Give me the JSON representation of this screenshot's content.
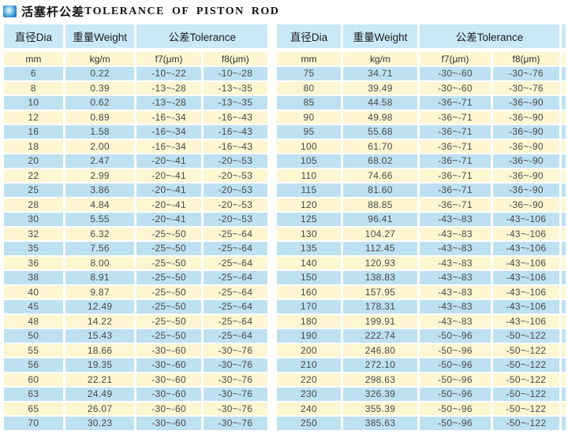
{
  "title": {
    "zh": "活塞杆公差",
    "en": "TOLERANCE OF PISTON ROD"
  },
  "colors": {
    "row_blue": "#bde1f1",
    "row_yellow": "#fdf6d0",
    "header_blue": "#c9e9f6",
    "icon_blue": "#1d7fc4",
    "text_dark": "#1c1c1c",
    "text_data": "#4a4a4a"
  },
  "table": {
    "headers": {
      "dia": "直径Dia",
      "weight": "重量Weight",
      "tolerance": "公差Tolerance"
    },
    "subheaders": {
      "dia_unit": "mm",
      "weight_unit": "kg/m",
      "f7": "f7(μm)",
      "f8": "f8(μm)"
    },
    "left_rows": [
      [
        "6",
        "0.22",
        "-10~-22",
        "-10~-28"
      ],
      [
        "8",
        "0.39",
        "-13~-28",
        "-13~-35"
      ],
      [
        "10",
        "0.62",
        "-13~-28",
        "-13~-35"
      ],
      [
        "12",
        "0.89",
        "-16~-34",
        "-16~-43"
      ],
      [
        "16",
        "1.58",
        "-16~-34",
        "-16~-43"
      ],
      [
        "18",
        "2.00",
        "-16~-34",
        "-16~-43"
      ],
      [
        "20",
        "2.47",
        "-20~-41",
        "-20~-53"
      ],
      [
        "22",
        "2.99",
        "-20~-41",
        "-20~-53"
      ],
      [
        "25",
        "3.86",
        "-20~-41",
        "-20~-53"
      ],
      [
        "28",
        "4.84",
        "-20~-41",
        "-20~-53"
      ],
      [
        "30",
        "5.55",
        "-20~-41",
        "-20~-53"
      ],
      [
        "32",
        "6.32",
        "-25~-50",
        "-25~-64"
      ],
      [
        "35",
        "7.56",
        "-25~-50",
        "-25~-64"
      ],
      [
        "36",
        "8.00",
        "-25~-50",
        "-25~-64"
      ],
      [
        "38",
        "8.91",
        "-25~-50",
        "-25~-64"
      ],
      [
        "40",
        "9.87",
        "-25~-50",
        "-25~-64"
      ],
      [
        "45",
        "12.49",
        "-25~-50",
        "-25~-64"
      ],
      [
        "48",
        "14.22",
        "-25~-50",
        "-25~-64"
      ],
      [
        "50",
        "15.43",
        "-25~-50",
        "-25~-64"
      ],
      [
        "55",
        "18.66",
        "-30~-60",
        "-30~-76"
      ],
      [
        "56",
        "19.35",
        "-30~-60",
        "-30~-76"
      ],
      [
        "60",
        "22.21",
        "-30~-60",
        "-30~-76"
      ],
      [
        "63",
        "24.49",
        "-30~-60",
        "-30~-76"
      ],
      [
        "65",
        "26.07",
        "-30~-60",
        "-30~-76"
      ],
      [
        "70",
        "30.23",
        "-30~-60",
        "-30~-76"
      ]
    ],
    "right_rows": [
      [
        "75",
        "34.71",
        "-30~-60",
        "-30~-76"
      ],
      [
        "80",
        "39.49",
        "-30~-60",
        "-30~-76"
      ],
      [
        "85",
        "44.58",
        "-36~-71",
        "-36~-90"
      ],
      [
        "90",
        "49.98",
        "-36~-71",
        "-36~-90"
      ],
      [
        "95",
        "55.68",
        "-36~-71",
        "-36~-90"
      ],
      [
        "100",
        "61.70",
        "-36~-71",
        "-36~-90"
      ],
      [
        "105",
        "68.02",
        "-36~-71",
        "-36~-90"
      ],
      [
        "110",
        "74.66",
        "-36~-71",
        "-36~-90"
      ],
      [
        "115",
        "81.60",
        "-36~-71",
        "-36~-90"
      ],
      [
        "120",
        "88.85",
        "-36~-71",
        "-36~-90"
      ],
      [
        "125",
        "96.41",
        "-43~-83",
        "-43~-106"
      ],
      [
        "130",
        "104.27",
        "-43~-83",
        "-43~-106"
      ],
      [
        "135",
        "112.45",
        "-43~-83",
        "-43~-106"
      ],
      [
        "140",
        "120.93",
        "-43~-83",
        "-43~-106"
      ],
      [
        "150",
        "138.83",
        "-43~-83",
        "-43~-106"
      ],
      [
        "160",
        "157.95",
        "-43~-83",
        "-43~-106"
      ],
      [
        "170",
        "178.31",
        "-43~-83",
        "-43~-106"
      ],
      [
        "180",
        "199.91",
        "-43~-83",
        "-43~-106"
      ],
      [
        "190",
        "222.74",
        "-50~-96",
        "-50~-122"
      ],
      [
        "200",
        "246.80",
        "-50~-96",
        "-50~-122"
      ],
      [
        "210",
        "272.10",
        "-50~-96",
        "-50~-122"
      ],
      [
        "220",
        "298.63",
        "-50~-96",
        "-50~-122"
      ],
      [
        "230",
        "326.39",
        "-50~-96",
        "-50~-122"
      ],
      [
        "240",
        "355.39",
        "-50~-96",
        "-50~-122"
      ],
      [
        "250",
        "385.63",
        "-50~-96",
        "-50~-122"
      ]
    ]
  }
}
